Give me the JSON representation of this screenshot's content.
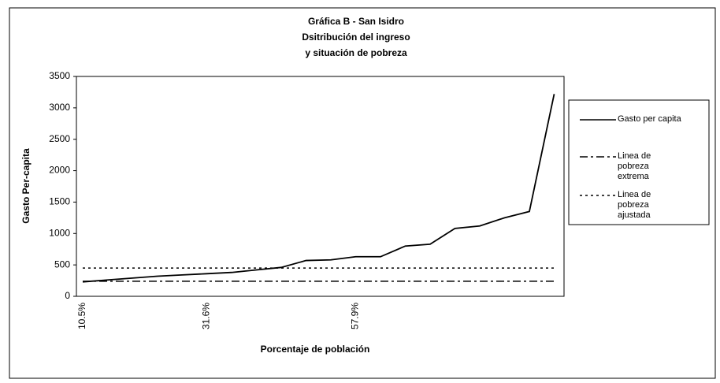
{
  "chart_data": {
    "type": "line",
    "title": [
      "Gráfica B - San Isidro",
      "Dsitribución del ingreso",
      "y situación de pobreza"
    ],
    "ylabel": "Gasto Per-capita",
    "xlabel": "Porcentaje de población",
    "categories": [
      "10.5%",
      null,
      null,
      null,
      null,
      "31.6%",
      null,
      null,
      null,
      null,
      null,
      "57.9%",
      null,
      null,
      null,
      null,
      null,
      null,
      null,
      null
    ],
    "ylim": [
      0,
      3500
    ],
    "yticks": [
      0,
      500,
      1000,
      1500,
      2000,
      2500,
      3000,
      3500
    ],
    "legend": "right",
    "series": [
      {
        "name": "Gasto per capita",
        "color": "#000000",
        "dash": "solid",
        "values": [
          230,
          260,
          290,
          320,
          340,
          360,
          380,
          420,
          460,
          570,
          580,
          630,
          630,
          800,
          830,
          1080,
          1120,
          1250,
          1350,
          3220
        ]
      },
      {
        "name": "Linea de pobreza extrema",
        "color": "#000000",
        "dash": "dashdot",
        "values": [
          240,
          240,
          240,
          240,
          240,
          240,
          240,
          240,
          240,
          240,
          240,
          240,
          240,
          240,
          240,
          240,
          240,
          240,
          240,
          240
        ]
      },
      {
        "name": "Linea de pobreza ajustada",
        "color": "#000000",
        "dash": "dotted",
        "values": [
          450,
          450,
          450,
          450,
          450,
          450,
          450,
          450,
          450,
          450,
          450,
          450,
          450,
          450,
          450,
          450,
          450,
          450,
          450,
          450
        ]
      }
    ]
  }
}
